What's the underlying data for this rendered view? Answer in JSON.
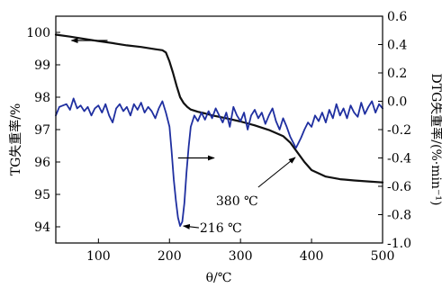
{
  "chart_data": {
    "type": "line",
    "xlabel": "θ/℃",
    "ylabel_left": "TG失重率/%",
    "ylabel_right": "DTG失重率/(%·min⁻¹)",
    "xlim": [
      40,
      500
    ],
    "ylim_left": [
      93.5,
      100.5
    ],
    "ylim_right": [
      -1.0,
      0.6
    ],
    "x_ticks": [
      100,
      200,
      300,
      400,
      500
    ],
    "y_left_ticks": [
      94,
      95,
      96,
      97,
      98,
      99,
      100
    ],
    "y_right_ticks": [
      -1.0,
      -0.8,
      -0.6,
      -0.4,
      -0.2,
      0.0,
      0.2,
      0.4,
      0.6
    ],
    "x_tick_labels": [
      "100",
      "200",
      "300",
      "400",
      "500"
    ],
    "y_left_tick_labels": [
      "94",
      "95",
      "96",
      "97",
      "98",
      "99",
      "100"
    ],
    "y_right_tick_labels": [
      "-1.0",
      "-0.8",
      "-0.6",
      "-0.4",
      "-0.2",
      "0.0",
      "0.2",
      "0.4",
      "0.6"
    ],
    "series": [
      {
        "color": "#111111",
        "axis": "left",
        "x": [
          40,
          60,
          80,
          100,
          120,
          140,
          160,
          180,
          190,
          195,
          200,
          205,
          210,
          215,
          220,
          225,
          230,
          240,
          250,
          260,
          280,
          300,
          320,
          340,
          360,
          370,
          380,
          390,
          400,
          420,
          440,
          460,
          480,
          500
        ],
        "y": [
          99.93,
          99.87,
          99.8,
          99.73,
          99.67,
          99.6,
          99.55,
          99.48,
          99.45,
          99.38,
          99.1,
          98.75,
          98.35,
          98.0,
          97.82,
          97.7,
          97.62,
          97.55,
          97.5,
          97.44,
          97.35,
          97.25,
          97.13,
          96.99,
          96.8,
          96.6,
          96.3,
          96.0,
          95.75,
          95.55,
          95.47,
          95.43,
          95.4,
          95.37
        ]
      },
      {
        "color": "#1f2fa0",
        "axis": "right",
        "x": [
          40,
          45,
          50,
          55,
          60,
          65,
          70,
          75,
          80,
          85,
          90,
          95,
          100,
          105,
          110,
          115,
          120,
          125,
          130,
          135,
          140,
          145,
          150,
          155,
          160,
          165,
          170,
          175,
          180,
          185,
          190,
          195,
          200,
          203,
          206,
          209,
          212,
          215,
          218,
          221,
          224,
          227,
          230,
          235,
          240,
          245,
          250,
          255,
          260,
          265,
          270,
          275,
          280,
          285,
          290,
          295,
          300,
          305,
          310,
          315,
          320,
          325,
          330,
          335,
          340,
          345,
          350,
          355,
          360,
          365,
          370,
          375,
          378,
          381,
          385,
          390,
          395,
          400,
          405,
          410,
          415,
          420,
          425,
          430,
          435,
          440,
          445,
          450,
          455,
          460,
          465,
          470,
          475,
          480,
          485,
          490,
          495,
          500
        ],
        "y": [
          -0.1,
          -0.04,
          -0.03,
          -0.02,
          -0.06,
          0.02,
          -0.05,
          -0.03,
          -0.07,
          -0.04,
          -0.1,
          -0.05,
          -0.03,
          -0.08,
          -0.02,
          -0.1,
          -0.15,
          -0.05,
          -0.02,
          -0.07,
          -0.04,
          -0.1,
          -0.02,
          -0.06,
          -0.01,
          -0.08,
          -0.04,
          -0.07,
          -0.12,
          -0.05,
          0.0,
          -0.08,
          -0.18,
          -0.35,
          -0.55,
          -0.7,
          -0.82,
          -0.88,
          -0.85,
          -0.72,
          -0.5,
          -0.32,
          -0.18,
          -0.1,
          -0.14,
          -0.08,
          -0.13,
          -0.07,
          -0.12,
          -0.05,
          -0.1,
          -0.15,
          -0.08,
          -0.18,
          -0.04,
          -0.1,
          -0.14,
          -0.08,
          -0.2,
          -0.1,
          -0.06,
          -0.12,
          -0.08,
          -0.16,
          -0.1,
          -0.05,
          -0.14,
          -0.2,
          -0.12,
          -0.18,
          -0.25,
          -0.3,
          -0.33,
          -0.3,
          -0.26,
          -0.2,
          -0.15,
          -0.18,
          -0.1,
          -0.14,
          -0.08,
          -0.15,
          -0.06,
          -0.12,
          -0.02,
          -0.1,
          -0.05,
          -0.12,
          -0.03,
          -0.08,
          -0.11,
          -0.01,
          -0.09,
          -0.04,
          0.0,
          -0.08,
          -0.02,
          -0.05
        ]
      }
    ],
    "annotations": [
      {
        "text": "216 ℃",
        "target": {
          "x": 216,
          "y": -0.88,
          "axis": "right"
        }
      },
      {
        "text": "380 ℃",
        "target": {
          "x": 382,
          "y": 96.25,
          "axis": "left"
        }
      }
    ],
    "arrows": [
      {
        "direction": "left",
        "points_to": "left_axis",
        "near": {
          "x": 85,
          "y": 99.75,
          "axis": "left"
        }
      },
      {
        "direction": "right",
        "points_to": "right_axis",
        "near": {
          "x": 240,
          "y": -0.4,
          "axis": "right"
        }
      }
    ],
    "grid": false
  }
}
